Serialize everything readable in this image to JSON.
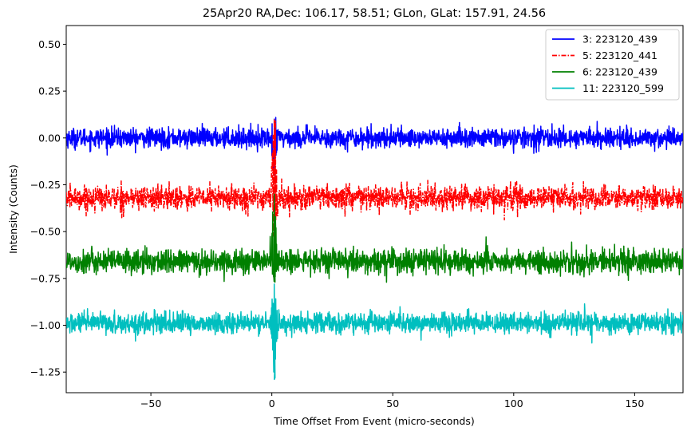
{
  "chart_data": {
    "type": "line",
    "title": "25Apr20 RA,Dec:  106.17,  58.51; GLon, GLat:  157.91,  24.56",
    "xlabel": "Time Offset From Event (micro-seconds)",
    "ylabel": "Intensity (Counts)",
    "xlim": [
      -85,
      170
    ],
    "ylim": [
      -1.36,
      0.6
    ],
    "xticks": [
      -50,
      0,
      50,
      100,
      150
    ],
    "xtick_labels": [
      "−50",
      "0",
      "50",
      "100",
      "150"
    ],
    "yticks": [
      0.5,
      0.25,
      0.0,
      -0.25,
      -0.5,
      -0.75,
      -1.0,
      -1.25
    ],
    "ytick_labels": [
      "0.50",
      "0.25",
      "0.00",
      "−0.25",
      "−0.50",
      "−0.75",
      "−1.00",
      "−1.25"
    ],
    "legend_position": "top-right",
    "series": [
      {
        "name": "3: 223120_439",
        "label": "3: 223120_439",
        "color": "#0000ff",
        "style": "solid",
        "baseline": 0.0,
        "noise": 0.026,
        "event_peak": 0.1,
        "event_low": -0.2
      },
      {
        "name": "5: 223120_441",
        "label": "5: 223120_441",
        "color": "#ff0000",
        "style": "dashdot",
        "baseline": -0.32,
        "noise": 0.032,
        "event_peak": 0.1,
        "event_low": -0.54
      },
      {
        "name": "6: 223120_439",
        "label": "6: 223120_439",
        "color": "#008000",
        "style": "solid",
        "baseline": -0.66,
        "noise": 0.032,
        "event_peak": -0.3,
        "event_low": -0.77
      },
      {
        "name": "11: 223120_599",
        "label": "11: 223120_599",
        "color": "#00bfbf",
        "style": "solid",
        "baseline": -0.99,
        "noise": 0.028,
        "event_peak": -0.78,
        "event_low": -1.28
      }
    ]
  }
}
